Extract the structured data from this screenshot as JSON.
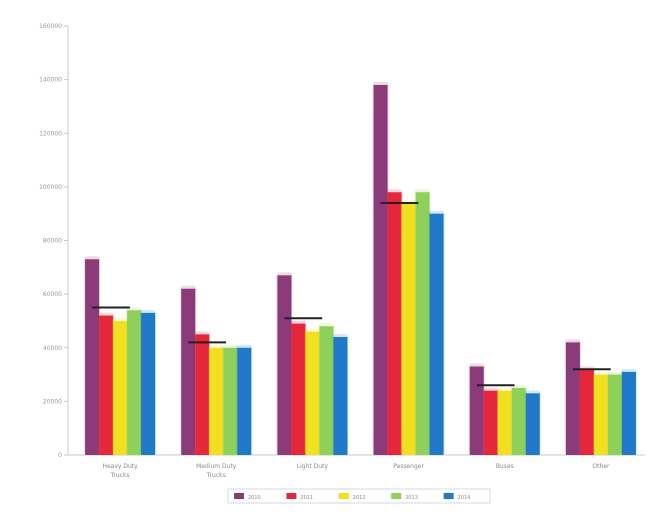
{
  "chart_data": {
    "type": "bar",
    "title": "",
    "xlabel": "",
    "ylabel": "",
    "ylim": [
      0,
      160000
    ],
    "yticks": [
      0,
      20000,
      40000,
      60000,
      80000,
      100000,
      120000,
      140000,
      160000
    ],
    "ytick_labels": [
      "0",
      "20000",
      "40000",
      "60000",
      "80000",
      "100000",
      "120000",
      "140000",
      "160000"
    ],
    "grid": false,
    "legend_position": "bottom",
    "categories": [
      [
        "Heavy Duty",
        "Trucks"
      ],
      [
        "Medium Duty",
        "Trucks"
      ],
      [
        "Light Duty"
      ],
      [
        "Passenger"
      ],
      [
        "Buses"
      ],
      [
        "Other"
      ]
    ],
    "series": [
      {
        "name": "2010",
        "color": "#8b3a7a",
        "values": [
          73000,
          62000,
          67000,
          138000,
          33000,
          42000
        ]
      },
      {
        "name": "2011",
        "color": "#e4273a",
        "values": [
          52000,
          45000,
          49000,
          98000,
          24000,
          32000
        ]
      },
      {
        "name": "2012",
        "color": "#f0e020",
        "values": [
          50000,
          40000,
          46000,
          94000,
          24000,
          30000
        ]
      },
      {
        "name": "2013",
        "color": "#8fd05a",
        "values": [
          54000,
          40000,
          48000,
          98000,
          25000,
          30000
        ]
      },
      {
        "name": "2014",
        "color": "#1f78c8",
        "values": [
          53000,
          40000,
          44000,
          90000,
          23000,
          31000
        ]
      }
    ],
    "markers": [
      55000,
      42000,
      51000,
      94000,
      26000,
      32000
    ]
  }
}
